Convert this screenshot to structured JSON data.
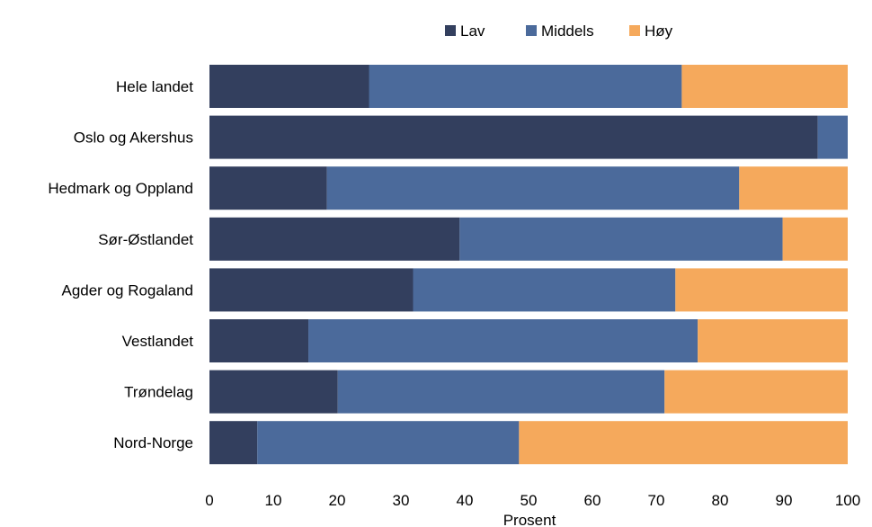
{
  "chart_data": {
    "type": "bar",
    "orientation": "horizontal",
    "stacked": true,
    "categories": [
      "Hele landet",
      "Oslo og Akershus",
      "Hedmark og Oppland",
      "Sør-Østlandet",
      "Agder og Rogaland",
      "Vestlandet",
      "Trøndelag",
      "Nord-Norge"
    ],
    "series": [
      {
        "name": "Lav",
        "color": "#333f5e",
        "values": [
          25,
          95.3,
          18.4,
          39.2,
          31.9,
          15.5,
          20.1,
          7.5
        ]
      },
      {
        "name": "Middels",
        "color": "#4b6a9b",
        "values": [
          49,
          4.7,
          64.6,
          50.6,
          41.1,
          61,
          51.2,
          41
        ]
      },
      {
        "name": "Høy",
        "color": "#f5a95c",
        "values": [
          26,
          0,
          17,
          10.2,
          27,
          23.5,
          28.7,
          51.5
        ]
      }
    ],
    "xlabel": "Prosent",
    "ylabel": "",
    "xlim": [
      0,
      100
    ],
    "xticks": [
      0,
      10,
      20,
      30,
      40,
      50,
      60,
      70,
      80,
      90,
      100
    ],
    "grid": "none",
    "legend": "top"
  }
}
